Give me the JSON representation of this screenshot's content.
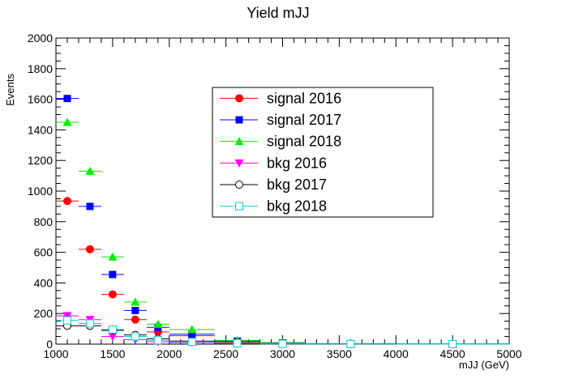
{
  "chart_data": {
    "type": "scatter",
    "title": "Yield mJJ",
    "xlabel": "mJJ (GeV)",
    "ylabel": "Events",
    "xlim": [
      1000,
      5000
    ],
    "ylim": [
      0,
      2000
    ],
    "xticks": [
      1000,
      1500,
      2000,
      2500,
      3000,
      3500,
      4000,
      4500,
      5000
    ],
    "yticks": [
      0,
      200,
      400,
      600,
      800,
      1000,
      1200,
      1400,
      1600,
      1800,
      2000
    ],
    "bins": [
      [
        1000,
        1200
      ],
      [
        1200,
        1400
      ],
      [
        1400,
        1600
      ],
      [
        1600,
        1800
      ],
      [
        1800,
        2000
      ],
      [
        2000,
        2400
      ],
      [
        2400,
        2800
      ],
      [
        2800,
        3200
      ],
      [
        3200,
        4000
      ],
      [
        4000,
        5000
      ]
    ],
    "series": [
      {
        "name": "signal 2016",
        "color": "#ff0000",
        "marker": "circle-filled",
        "values": [
          935,
          620,
          325,
          160,
          80,
          55,
          15,
          5,
          2,
          1
        ]
      },
      {
        "name": "signal 2017",
        "color": "#0000ff",
        "marker": "square-filled",
        "values": [
          1605,
          900,
          455,
          220,
          110,
          65,
          20,
          8,
          3,
          1
        ]
      },
      {
        "name": "signal 2018",
        "color": "#00ee00",
        "marker": "triangle-up-filled",
        "values": [
          1450,
          1130,
          570,
          275,
          130,
          95,
          25,
          10,
          3,
          1
        ]
      },
      {
        "name": "bkg 2016",
        "color": "#ff00ff",
        "marker": "triangle-down-filled",
        "values": [
          185,
          160,
          50,
          30,
          15,
          10,
          5,
          2,
          1,
          0
        ]
      },
      {
        "name": "bkg 2017",
        "color": "#000000",
        "marker": "circle-open",
        "values": [
          120,
          120,
          90,
          60,
          35,
          20,
          8,
          3,
          1,
          0
        ]
      },
      {
        "name": "bkg 2018",
        "color": "#00d0d0",
        "marker": "square-open",
        "values": [
          155,
          135,
          95,
          50,
          25,
          15,
          6,
          2,
          1,
          0
        ]
      }
    ],
    "legend_position": "top-center",
    "grid": false
  }
}
